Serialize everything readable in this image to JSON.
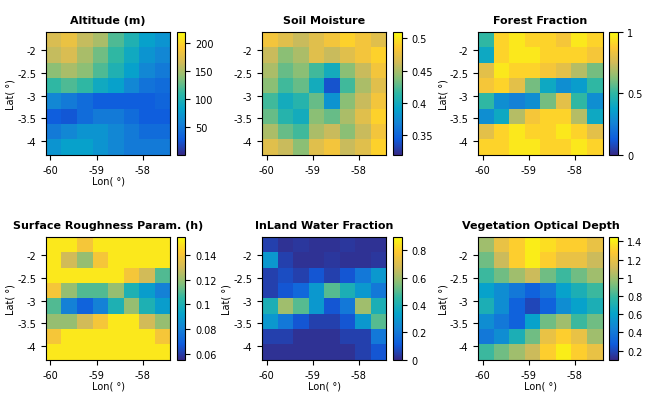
{
  "chart_data": [
    {
      "type": "heatmap",
      "title": "Altitude (m)",
      "xlabel": "Lon( °)",
      "ylabel": "Lat( °)",
      "xlim": [
        -60.1,
        -57.4
      ],
      "ylim": [
        -4.3,
        -1.6
      ],
      "xticks": [
        -60,
        -59,
        -58
      ],
      "yticks": [
        -4,
        -3.5,
        -3,
        -2.5,
        -2
      ],
      "colorbar_range": [
        0,
        220
      ],
      "colorbar_ticks": [
        50,
        100,
        150,
        200
      ],
      "cells": [
        [
          170,
          180,
          160,
          150,
          120,
          100,
          80,
          70
        ],
        [
          160,
          170,
          150,
          130,
          110,
          90,
          70,
          60
        ],
        [
          140,
          150,
          140,
          120,
          100,
          80,
          60,
          50
        ],
        [
          110,
          120,
          110,
          90,
          80,
          60,
          45,
          40
        ],
        [
          60,
          50,
          40,
          30,
          30,
          30,
          30,
          35
        ],
        [
          30,
          25,
          40,
          50,
          50,
          40,
          30,
          30
        ],
        [
          50,
          60,
          70,
          70,
          60,
          50,
          40,
          40
        ],
        [
          70,
          80,
          80,
          70,
          60,
          50,
          50,
          50
        ]
      ]
    },
    {
      "type": "heatmap",
      "title": "Soil Moisture",
      "xlim": [
        -60.1,
        -57.4
      ],
      "ylim": [
        -4.3,
        -1.6
      ],
      "xticks": [
        -60,
        -59,
        -58
      ],
      "yticks": [
        -4,
        -3.5,
        -3,
        -2.5,
        -2
      ],
      "colorbar_range": [
        0.32,
        0.51
      ],
      "colorbar_ticks": [
        0.35,
        0.4,
        0.45,
        0.5
      ],
      "cells": [
        [
          0.48,
          0.47,
          0.46,
          0.47,
          0.48,
          0.49,
          0.48,
          0.47
        ],
        [
          0.46,
          0.44,
          0.45,
          0.47,
          0.46,
          0.47,
          0.48,
          0.49
        ],
        [
          0.45,
          0.43,
          0.44,
          0.42,
          0.4,
          0.44,
          0.46,
          0.48
        ],
        [
          0.44,
          0.42,
          0.43,
          0.4,
          0.34,
          0.42,
          0.45,
          0.47
        ],
        [
          0.42,
          0.4,
          0.41,
          0.43,
          0.38,
          0.44,
          0.46,
          0.48
        ],
        [
          0.43,
          0.41,
          0.4,
          0.44,
          0.43,
          0.45,
          0.47,
          0.49
        ],
        [
          0.45,
          0.43,
          0.42,
          0.45,
          0.46,
          0.44,
          0.46,
          0.48
        ],
        [
          0.47,
          0.46,
          0.44,
          0.47,
          0.48,
          0.46,
          0.47,
          0.49
        ]
      ]
    },
    {
      "type": "heatmap",
      "title": "Forest Fraction",
      "ylabel": "Lat( °)",
      "xlim": [
        -60.1,
        -57.4
      ],
      "ylim": [
        -4.3,
        -1.6
      ],
      "xticks": [
        -60,
        -59,
        -58
      ],
      "yticks": [
        -4,
        -3.5,
        -3,
        -2.5,
        -2
      ],
      "colorbar_range": [
        0,
        1
      ],
      "colorbar_ticks": [
        0,
        0.5,
        1
      ],
      "cells": [
        [
          0.5,
          0.9,
          0.95,
          0.9,
          0.9,
          0.85,
          0.95,
          0.9
        ],
        [
          0.4,
          0.9,
          0.95,
          0.95,
          0.9,
          0.9,
          0.9,
          0.85
        ],
        [
          0.8,
          0.95,
          0.9,
          0.9,
          0.85,
          0.8,
          0.7,
          0.6
        ],
        [
          0.85,
          0.9,
          0.8,
          0.6,
          0.4,
          0.3,
          0.35,
          0.5
        ],
        [
          0.5,
          0.3,
          0.25,
          0.3,
          0.6,
          0.8,
          0.5,
          0.3
        ],
        [
          0.3,
          0.4,
          0.7,
          0.85,
          0.9,
          0.9,
          0.7,
          0.4
        ],
        [
          0.8,
          0.9,
          0.95,
          0.9,
          0.9,
          0.95,
          0.9,
          0.8
        ],
        [
          0.9,
          0.9,
          0.95,
          0.95,
          0.9,
          0.9,
          0.95,
          0.9
        ]
      ]
    },
    {
      "type": "heatmap",
      "title": "Surface Roughness Param. (h)",
      "xlabel": "Lon( °)",
      "ylabel": "Lat( °)",
      "xlim": [
        -60.1,
        -57.4
      ],
      "ylim": [
        -4.3,
        -1.6
      ],
      "xticks": [
        -60,
        -59,
        -58
      ],
      "yticks": [
        -4,
        -3.5,
        -3,
        -2.5,
        -2
      ],
      "colorbar_range": [
        0.055,
        0.155
      ],
      "colorbar_ticks": [
        0.06,
        0.08,
        0.1,
        0.12,
        0.14
      ],
      "cells": [
        [
          0.15,
          0.15,
          0.14,
          0.15,
          0.15,
          0.15,
          0.15,
          0.15
        ],
        [
          0.15,
          0.13,
          0.12,
          0.14,
          0.15,
          0.15,
          0.15,
          0.15
        ],
        [
          0.15,
          0.15,
          0.15,
          0.15,
          0.15,
          0.14,
          0.13,
          0.11
        ],
        [
          0.14,
          0.12,
          0.11,
          0.11,
          0.12,
          0.1,
          0.09,
          0.08
        ],
        [
          0.11,
          0.08,
          0.07,
          0.08,
          0.1,
          0.12,
          0.1,
          0.09
        ],
        [
          0.12,
          0.12,
          0.13,
          0.14,
          0.15,
          0.15,
          0.13,
          0.12
        ],
        [
          0.14,
          0.15,
          0.15,
          0.15,
          0.15,
          0.15,
          0.15,
          0.14
        ],
        [
          0.15,
          0.15,
          0.15,
          0.15,
          0.15,
          0.15,
          0.15,
          0.15
        ]
      ]
    },
    {
      "type": "heatmap",
      "title": "InLand Water Fraction",
      "xlabel": "Lon( °)",
      "ylabel": "Lat( °)",
      "xlim": [
        -60.1,
        -57.4
      ],
      "ylim": [
        -4.3,
        -1.6
      ],
      "xticks": [
        -60,
        -59,
        -58
      ],
      "yticks": [
        -4,
        -3.5,
        -3,
        -2.5,
        -2
      ],
      "colorbar_range": [
        0,
        0.9
      ],
      "colorbar_ticks": [
        0,
        0.2,
        0.4,
        0.6,
        0.8
      ],
      "cells": [
        [
          0.05,
          0.02,
          0.03,
          0.02,
          0.02,
          0.03,
          0.02,
          0.02
        ],
        [
          0.3,
          0.05,
          0.02,
          0.02,
          0.03,
          0.02,
          0.02,
          0.03
        ],
        [
          0.05,
          0.08,
          0.05,
          0.1,
          0.05,
          0.1,
          0.2,
          0.3
        ],
        [
          0.05,
          0.1,
          0.15,
          0.3,
          0.5,
          0.4,
          0.3,
          0.2
        ],
        [
          0.4,
          0.6,
          0.5,
          0.3,
          0.1,
          0.2,
          0.6,
          0.4
        ],
        [
          0.3,
          0.2,
          0.1,
          0.05,
          0.05,
          0.1,
          0.3,
          0.5
        ],
        [
          0.05,
          0.05,
          0.02,
          0.02,
          0.02,
          0.05,
          0.05,
          0.2
        ],
        [
          0.02,
          0.02,
          0.02,
          0.02,
          0.02,
          0.02,
          0.05,
          0.1
        ]
      ]
    },
    {
      "type": "heatmap",
      "title": "Vegetation Optical Depth",
      "xlabel": "Lon( °)",
      "ylabel": "Lat( °)",
      "xlim": [
        -60.1,
        -57.4
      ],
      "ylim": [
        -4.3,
        -1.6
      ],
      "xticks": [
        -60,
        -59,
        -58
      ],
      "yticks": [
        -4,
        -3.5,
        -3,
        -2.5,
        -2
      ],
      "colorbar_range": [
        0.1,
        1.45
      ],
      "colorbar_ticks": [
        0.2,
        0.4,
        0.6,
        0.8,
        1,
        1.2,
        1.4
      ],
      "cells": [
        [
          1.0,
          1.2,
          1.3,
          1.4,
          1.35,
          1.3,
          1.3,
          1.2
        ],
        [
          0.9,
          1.1,
          1.3,
          1.4,
          1.3,
          1.2,
          1.2,
          1.1
        ],
        [
          0.8,
          0.9,
          1.0,
          1.1,
          0.9,
          0.8,
          0.9,
          1.0
        ],
        [
          0.6,
          0.5,
          0.4,
          0.3,
          0.4,
          0.6,
          0.7,
          0.8
        ],
        [
          0.7,
          0.5,
          0.3,
          0.2,
          0.3,
          0.5,
          0.6,
          0.7
        ],
        [
          0.5,
          0.4,
          0.3,
          0.6,
          0.9,
          1.0,
          0.8,
          0.9
        ],
        [
          0.4,
          0.5,
          0.7,
          0.9,
          1.2,
          1.3,
          1.2,
          1.0
        ],
        [
          0.8,
          0.9,
          1.0,
          1.1,
          1.3,
          1.4,
          1.3,
          1.2
        ]
      ]
    }
  ]
}
